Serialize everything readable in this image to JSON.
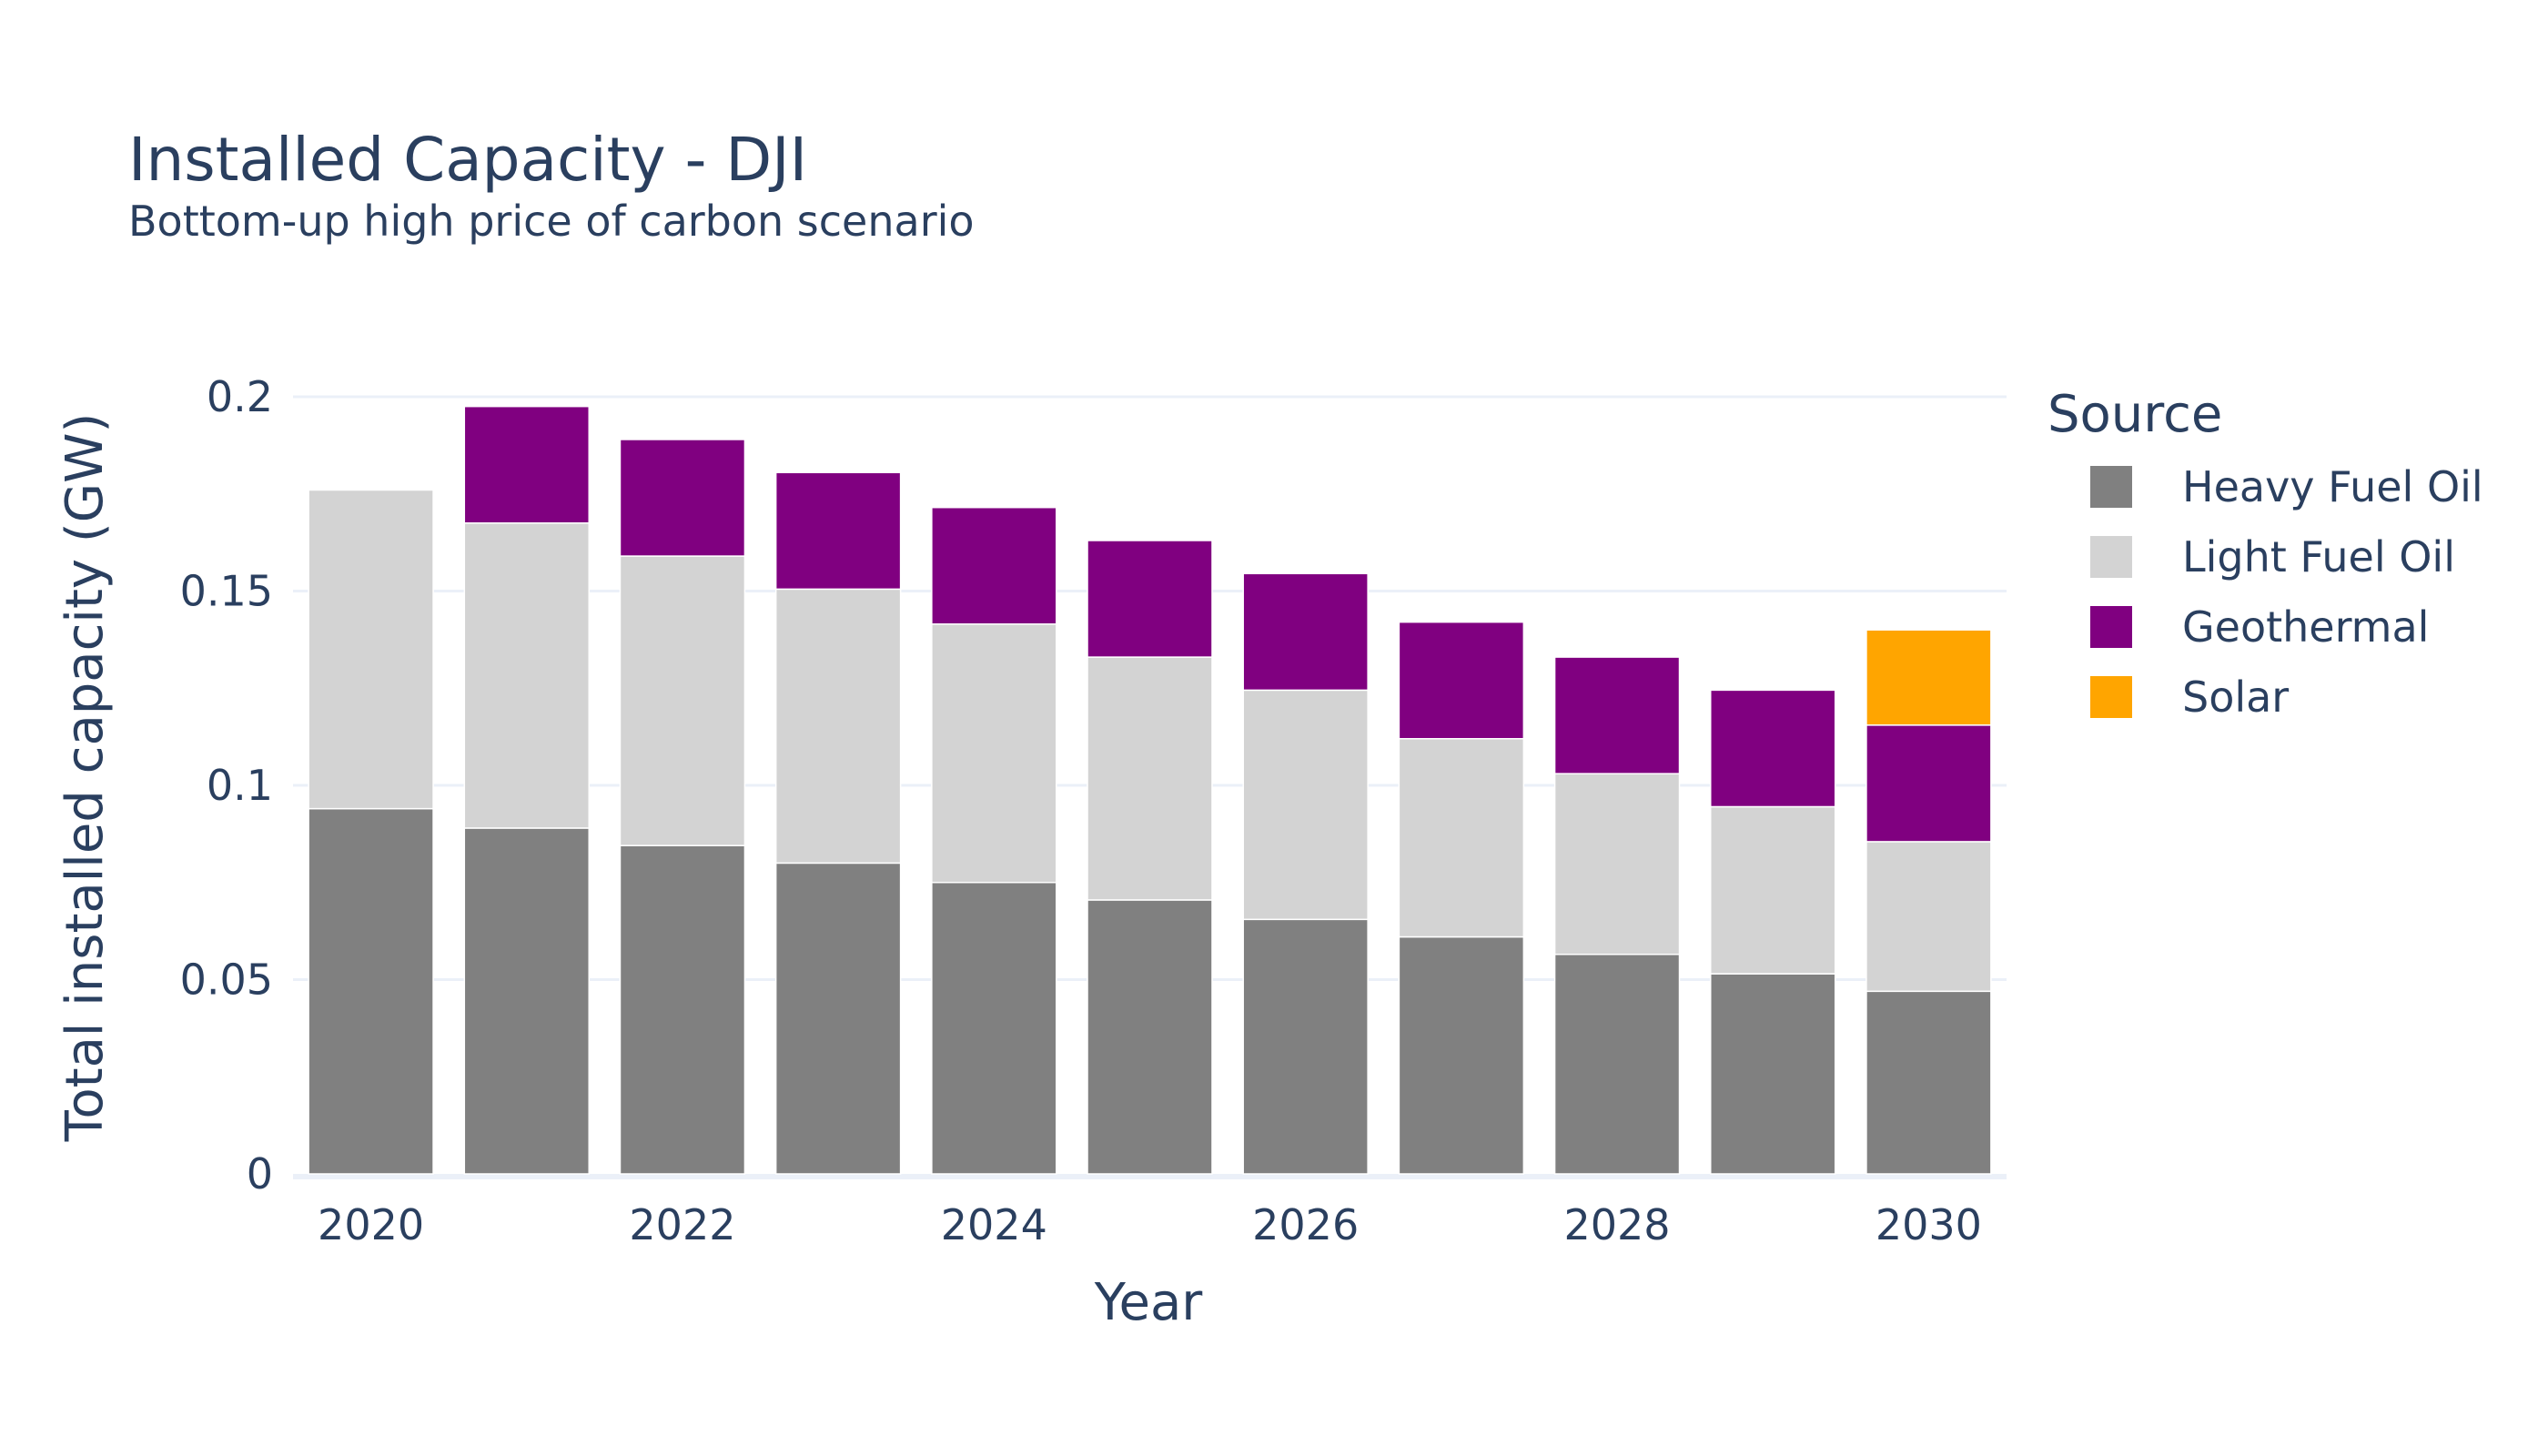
{
  "chart_data": {
    "type": "bar",
    "stacked": true,
    "title": "Installed Capacity - DJI",
    "subtitle": "Bottom-up high price of carbon scenario",
    "xlabel": "Year",
    "ylabel": "Total installed capacity (GW)",
    "ylim": [
      0,
      0.2
    ],
    "yticks": [
      0,
      0.05,
      0.1,
      0.15,
      0.2
    ],
    "ytick_labels": [
      "0",
      "0.05",
      "0.1",
      "0.15",
      "0.2"
    ],
    "xticks": [
      2020,
      2022,
      2024,
      2026,
      2028,
      2030
    ],
    "xtick_labels": [
      "2020",
      "2022",
      "2024",
      "2026",
      "2028",
      "2030"
    ],
    "grid": true,
    "legend_title": "Source",
    "legend_position": "right",
    "x": [
      2020,
      2021,
      2022,
      2023,
      2024,
      2025,
      2026,
      2027,
      2028,
      2029,
      2030
    ],
    "series": [
      {
        "name": "Heavy Fuel Oil",
        "color": "#808080",
        "values": [
          0.094,
          0.089,
          0.0845,
          0.08,
          0.075,
          0.0705,
          0.0655,
          0.061,
          0.0565,
          0.0515,
          0.047
        ]
      },
      {
        "name": "Light Fuel Oil",
        "color": "#d3d3d3",
        "values": [
          0.082,
          0.0785,
          0.0745,
          0.0705,
          0.0665,
          0.0625,
          0.059,
          0.051,
          0.0465,
          0.043,
          0.0385
        ]
      },
      {
        "name": "Geothermal",
        "color": "#800080",
        "values": [
          0,
          0.03,
          0.03,
          0.03,
          0.03,
          0.03,
          0.03,
          0.03,
          0.03,
          0.03,
          0.03
        ]
      },
      {
        "name": "Solar",
        "color": "#ffa500",
        "values": [
          0,
          0,
          0,
          0,
          0,
          0,
          0,
          0,
          0,
          0,
          0.0245
        ]
      }
    ]
  }
}
